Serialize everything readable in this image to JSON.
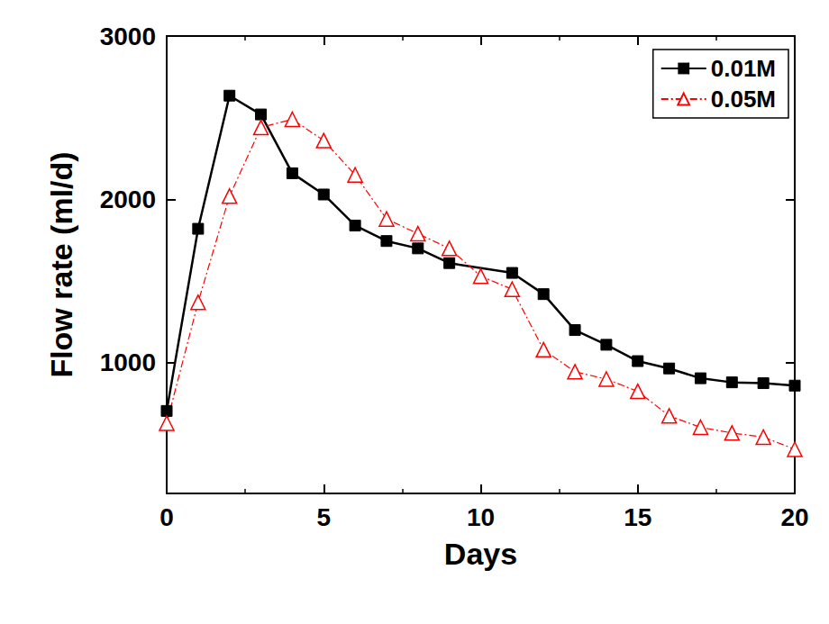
{
  "chart_data": {
    "type": "line",
    "x_label": "Days",
    "y_label": "Flow rate (ml/d)",
    "xlim": [
      0,
      20
    ],
    "xticks": [
      0,
      5,
      10,
      15,
      20
    ],
    "ylim": [
      200,
      3000
    ],
    "yticks": [
      1000,
      2000,
      3000
    ],
    "grid": false,
    "legend": "upper right",
    "series": [
      {
        "name": "0.01M",
        "color": "#000000",
        "marker": "square",
        "line_style": "solid",
        "x": [
          0,
          1,
          2,
          3,
          4,
          5,
          6,
          7,
          8,
          9,
          11,
          12,
          13,
          14,
          15,
          16,
          17,
          18,
          19,
          20
        ],
        "values": [
          705,
          1820,
          2635,
          2520,
          2160,
          2030,
          1840,
          1745,
          1700,
          1610,
          1550,
          1420,
          1200,
          1110,
          1010,
          965,
          905,
          880,
          875,
          860
        ]
      },
      {
        "name": "0.05M",
        "color": "#ff0000",
        "marker": "triangle",
        "line_style": "dashdot",
        "x": [
          0,
          1,
          2,
          3,
          4,
          5,
          6,
          7,
          8,
          9,
          10,
          11,
          12,
          13,
          14,
          15,
          16,
          17,
          18,
          19,
          20
        ],
        "values": [
          630,
          1370,
          2020,
          2440,
          2490,
          2360,
          2150,
          1880,
          1790,
          1700,
          1530,
          1450,
          1080,
          945,
          900,
          825,
          675,
          605,
          570,
          545,
          470
        ]
      }
    ]
  }
}
